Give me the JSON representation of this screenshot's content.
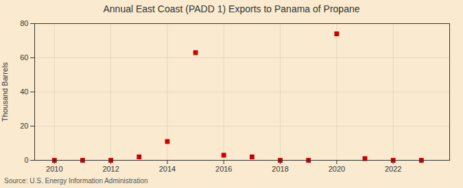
{
  "chart_data": {
    "type": "scatter",
    "title": "Annual East Coast (PADD 1) Exports to Panama of Propane",
    "ylabel": "Thousand Barrels",
    "source": "Source: U.S. Energy Information Administration",
    "x": [
      2010,
      2011,
      2012,
      2013,
      2014,
      2015,
      2016,
      2017,
      2018,
      2019,
      2020,
      2021,
      2022,
      2023
    ],
    "values": [
      0,
      0,
      0,
      2,
      11,
      63,
      3,
      2,
      0,
      0,
      74,
      1,
      0,
      0
    ],
    "color": "#cc0000",
    "marker": "square",
    "xlim": [
      2009.3,
      2024.0
    ],
    "xticks": [
      2010,
      2012,
      2014,
      2016,
      2018,
      2020,
      2022
    ],
    "ylim": [
      0,
      80
    ],
    "yticks": [
      0,
      20,
      40,
      60,
      80
    ],
    "grid": true
  }
}
